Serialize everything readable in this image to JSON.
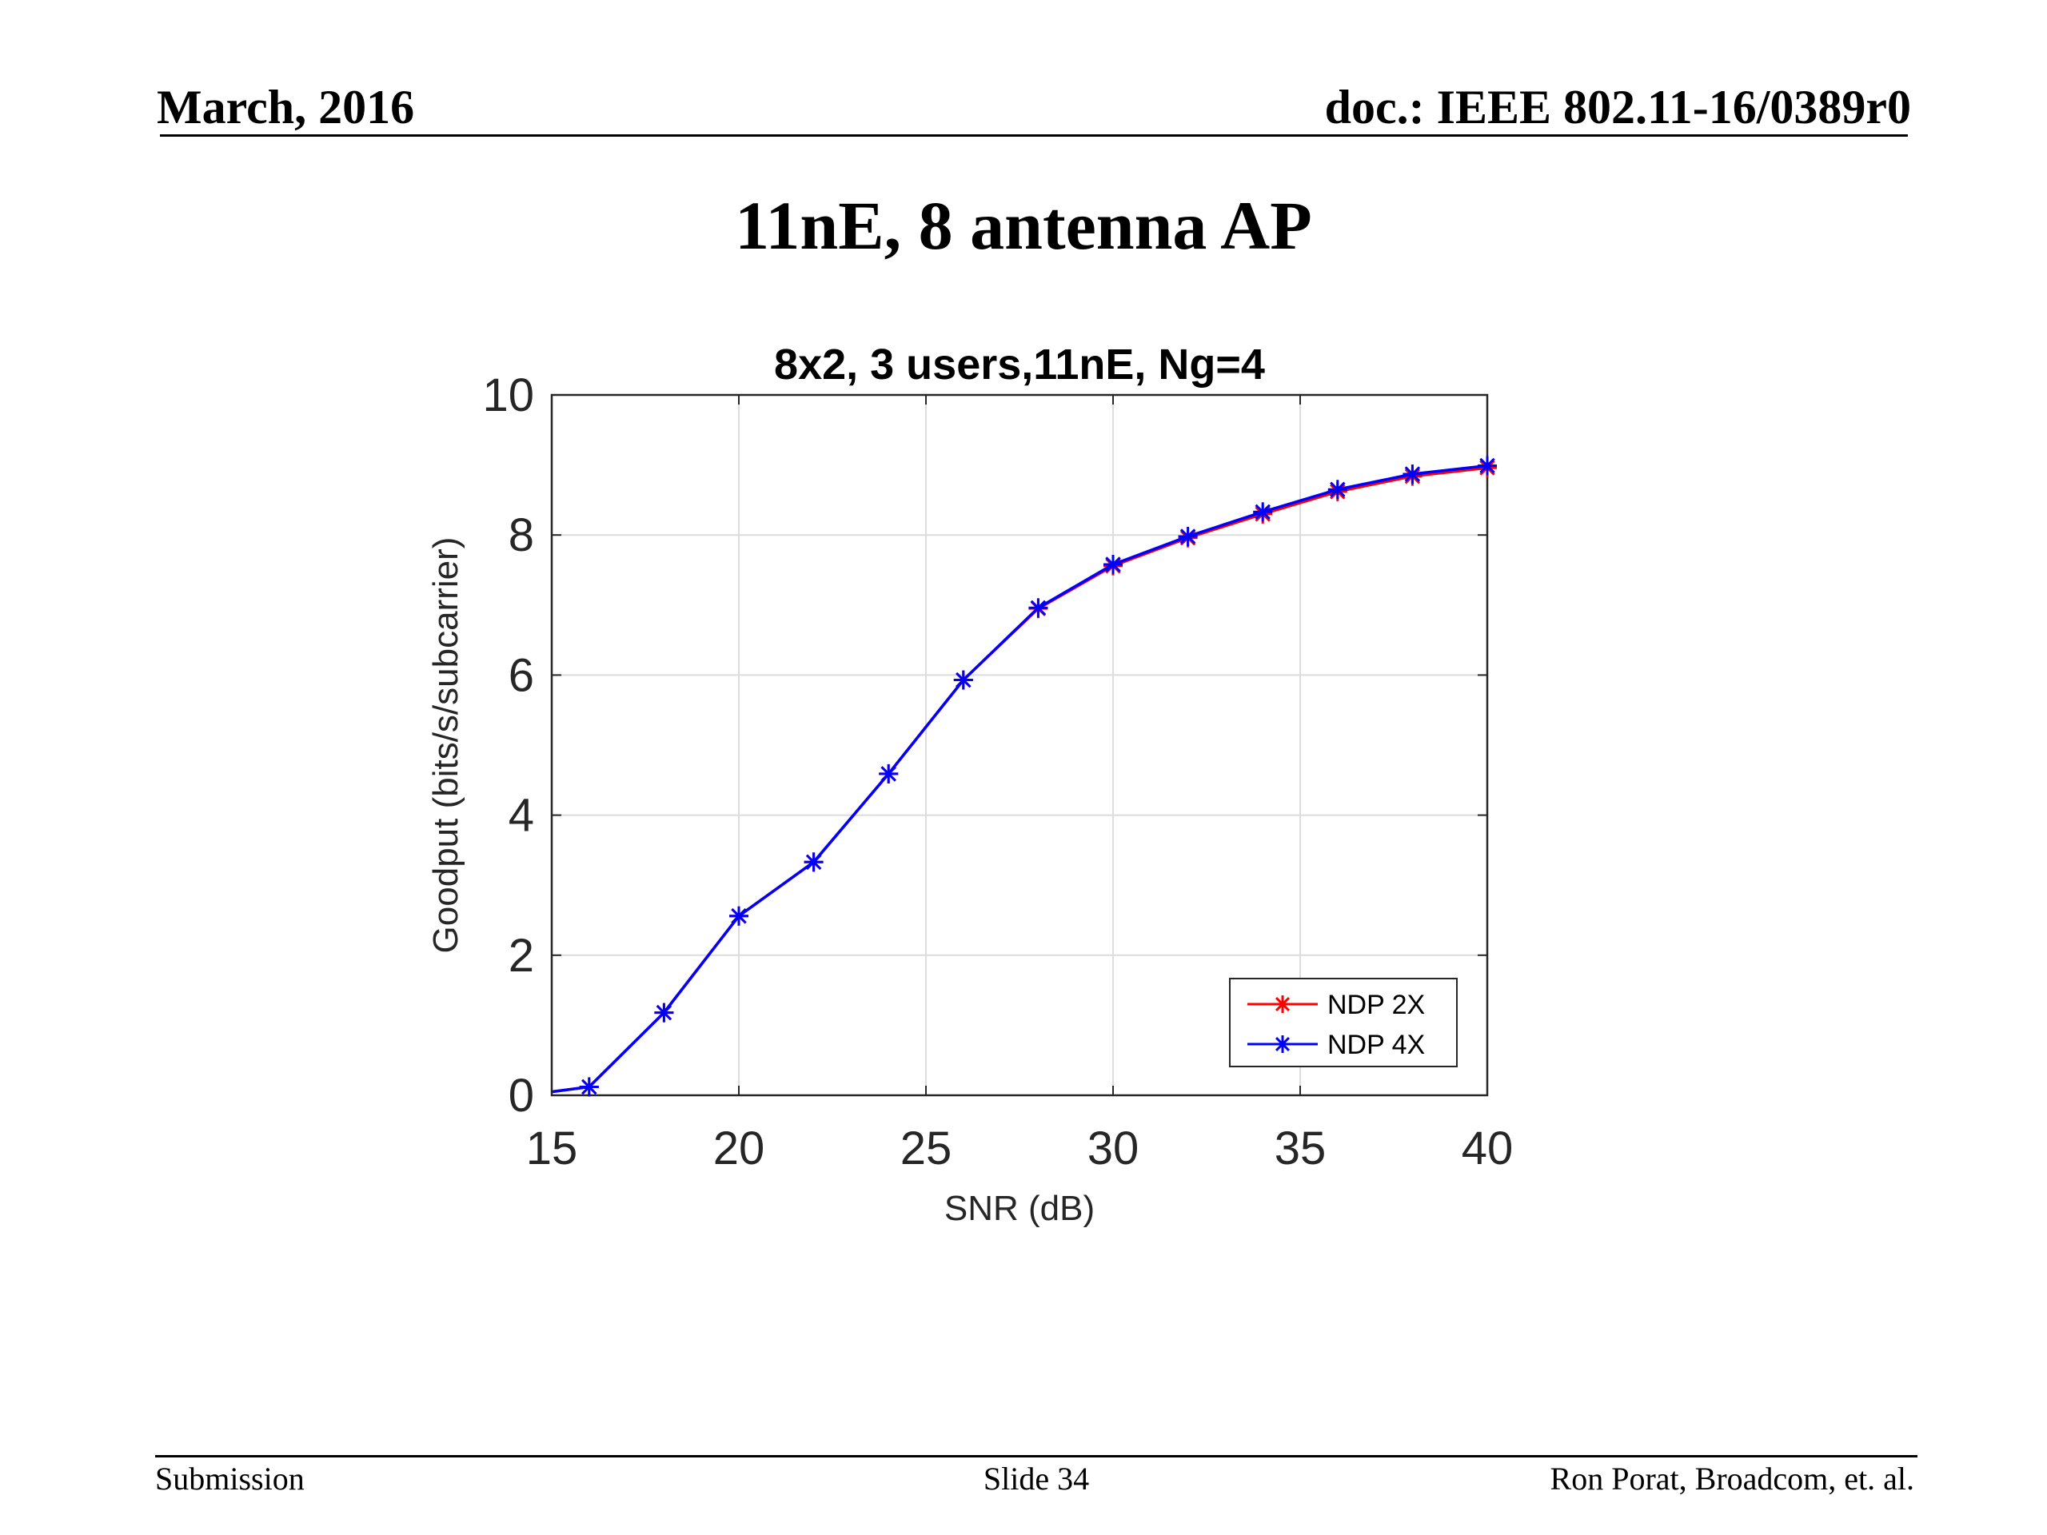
{
  "slide": {
    "header_left": "March, 2016",
    "header_right": "doc.: IEEE 802.11-16/0389r0",
    "title": "11nE, 8 antenna AP",
    "footer_left": "Submission",
    "footer_center": "Slide 34",
    "footer_right": "Ron Porat, Broadcom, et. al."
  },
  "chart_data": {
    "type": "line",
    "title": "8x2, 3 users,11nE, Ng=4",
    "xlabel": "SNR (dB)",
    "ylabel": "Goodput (bits/s/subcarrier)",
    "xlim": [
      15,
      40
    ],
    "ylim": [
      0,
      10
    ],
    "xticks": [
      15,
      20,
      25,
      30,
      35,
      40
    ],
    "yticks": [
      0,
      2,
      4,
      6,
      8,
      10
    ],
    "grid": true,
    "legend_position": "bottom-right",
    "series": [
      {
        "name": "NDP 2X",
        "color": "#ff0000",
        "marker": "asterisk",
        "x": [
          15,
          16,
          18,
          20,
          22,
          24,
          26,
          28,
          30,
          32,
          34,
          36,
          38,
          40
        ],
        "y": [
          0.05,
          0.12,
          1.18,
          2.56,
          3.33,
          4.59,
          5.93,
          6.95,
          7.56,
          7.96,
          8.3,
          8.62,
          8.84,
          8.96
        ]
      },
      {
        "name": "NDP 4X",
        "color": "#0000ff",
        "marker": "asterisk",
        "x": [
          15,
          16,
          18,
          20,
          22,
          24,
          26,
          28,
          30,
          32,
          34,
          36,
          38,
          40
        ],
        "y": [
          0.05,
          0.12,
          1.18,
          2.56,
          3.33,
          4.59,
          5.93,
          6.96,
          7.58,
          7.98,
          8.33,
          8.65,
          8.87,
          8.99
        ]
      }
    ]
  }
}
